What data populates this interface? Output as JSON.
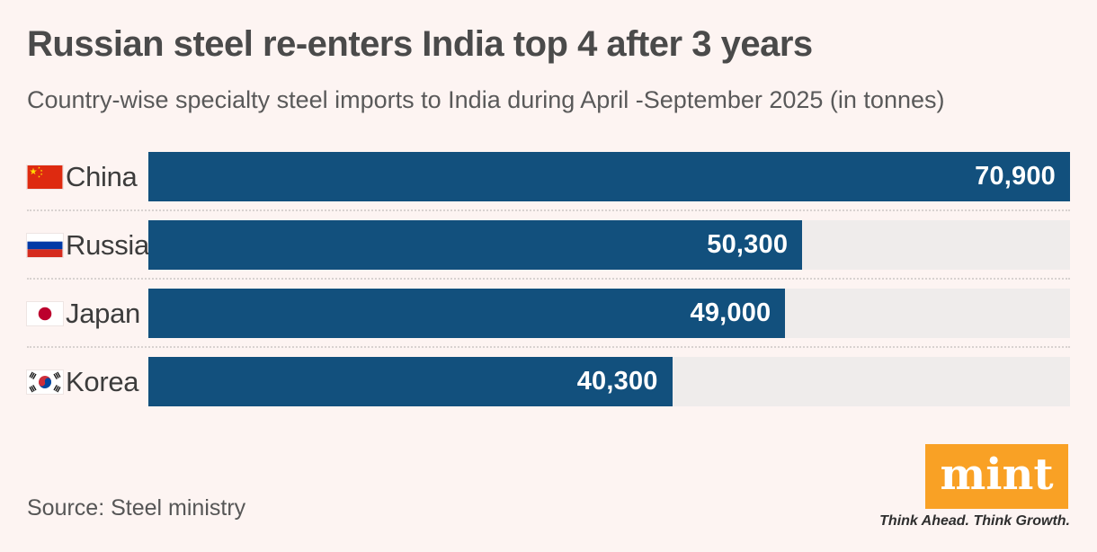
{
  "header": {
    "title": "Russian steel re-enters India top 4 after 3 years",
    "subtitle": "Country-wise specialty steel imports to India during April -September 2025 (in tonnes)"
  },
  "chart_data": {
    "type": "bar",
    "orientation": "horizontal",
    "title": "Russian steel re-enters India top 4 after 3 years",
    "subtitle": "Country-wise specialty steel imports to India during April -September 2025 (in tonnes)",
    "unit": "tonnes",
    "categories": [
      "China",
      "Russia",
      "Japan",
      "Korea"
    ],
    "values": [
      70900,
      50300,
      49000,
      40300
    ],
    "value_labels": [
      "70,900",
      "50,300",
      "49,000",
      "40,300"
    ],
    "flag_icons": [
      "china-flag-icon",
      "russia-flag-icon",
      "japan-flag-icon",
      "korea-flag-icon"
    ],
    "xlim": [
      0,
      70900
    ],
    "bar_color": "#12507d",
    "track_color": "#efeceb",
    "grid": false,
    "legend": false,
    "value_label_position": "inside-end"
  },
  "footer": {
    "source": "Source: Steel ministry",
    "brand": {
      "logo_text": "mint",
      "tagline": "Think Ahead. Think Growth.",
      "logo_bg_color": "#f9a125"
    }
  }
}
